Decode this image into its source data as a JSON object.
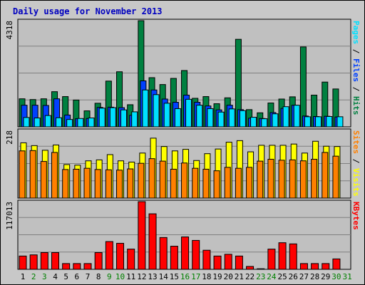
{
  "chart_data": {
    "type": "bar",
    "title": "Daily usage for November 2013",
    "categories": [
      "1",
      "2",
      "3",
      "4",
      "5",
      "6",
      "7",
      "8",
      "9",
      "10",
      "11",
      "12",
      "13",
      "14",
      "15",
      "16",
      "17",
      "18",
      "19",
      "20",
      "21",
      "22",
      "23",
      "24",
      "25",
      "26",
      "27",
      "28",
      "29",
      "30",
      "31"
    ],
    "weekend_days": [
      "2",
      "3",
      "9",
      "10",
      "16",
      "17",
      "23",
      "24",
      "30",
      "31"
    ],
    "panels": {
      "top": {
        "max_label": "4318",
        "ylim": [
          0,
          4318
        ],
        "series": [
          {
            "name": "Hits",
            "color": "#008040",
            "values": [
              1140,
              1110,
              1140,
              1430,
              1230,
              1090,
              650,
              960,
              1860,
              2240,
              900,
              4318,
              2000,
              1720,
              1970,
              2290,
              1160,
              1230,
              940,
              1180,
              3560,
              700,
              570,
              970,
              1130,
              1220,
              3250,
              1290,
              1820,
              1540,
              0
            ]
          },
          {
            "name": "Files",
            "color": "#0040ff",
            "values": [
              880,
              880,
              870,
              1140,
              480,
              330,
              340,
              790,
              800,
              780,
              470,
              1870,
              1500,
              1130,
              1000,
              1290,
              1000,
              850,
              690,
              880,
              700,
              350,
              340,
              580,
              750,
              880,
              440,
              420,
              430,
              400,
              0
            ]
          },
          {
            "name": "Pages",
            "color": "#00e0ff",
            "values": [
              380,
              360,
              460,
              370,
              300,
              340,
              360,
              760,
              780,
              690,
              610,
              1500,
              1310,
              960,
              740,
              1120,
              880,
              740,
              600,
              730,
              660,
              390,
              330,
              530,
              820,
              880,
              410,
              410,
              420,
              410,
              0
            ]
          }
        ],
        "axis_labels": [
          {
            "text": "Pages",
            "color": "#00e0ff"
          },
          {
            "text": " / ",
            "color": "#000000"
          },
          {
            "text": "Files",
            "color": "#0040ff"
          },
          {
            "text": " / ",
            "color": "#000000"
          },
          {
            "text": "Hits",
            "color": "#008040"
          }
        ]
      },
      "middle": {
        "max_label": "218",
        "ylim": [
          0,
          218
        ],
        "series": [
          {
            "name": "Visits",
            "color": "#ffff00",
            "values": [
              178,
              169,
              154,
              171,
              108,
              106,
              120,
              123,
              140,
              120,
              116,
              145,
              193,
              166,
              152,
              157,
              121,
              143,
              158,
              180,
              185,
              149,
              170,
              170,
              170,
              174,
              145,
              183,
              167,
              166,
              0
            ]
          },
          {
            "name": "Sites",
            "color": "#ff8000",
            "values": [
              152,
              153,
              118,
              147,
              92,
              93,
              96,
              92,
              91,
              90,
              94,
              112,
              127,
              119,
              93,
              113,
              96,
              93,
              88,
              99,
              96,
              99,
              119,
              125,
              122,
              123,
              120,
              125,
              147,
              135,
              0
            ]
          }
        ],
        "axis_labels": [
          {
            "text": "Sites",
            "color": "#ff8000"
          },
          {
            "text": " / ",
            "color": "#000000"
          },
          {
            "text": "Visits",
            "color": "#ffff00"
          }
        ]
      },
      "bottom": {
        "max_label": "117013",
        "ylim": [
          0,
          117013
        ],
        "series": [
          {
            "name": "KBytes",
            "color": "#ff0000",
            "values": [
              23000,
              25000,
              29000,
              29000,
              10000,
              10000,
              10000,
              29000,
              48000,
              45000,
              35000,
              117013,
              96000,
              55000,
              40000,
              56000,
              50000,
              33000,
              23000,
              26000,
              23000,
              5000,
              1000,
              35000,
              46000,
              44000,
              10000,
              10000,
              10000,
              18000,
              0
            ]
          }
        ],
        "axis_labels": [
          {
            "text": "KBytes",
            "color": "#ff0000"
          }
        ]
      }
    },
    "colors": {
      "frame_bg": "#c8c8c8",
      "plot_bg": "#c0c0c0",
      "title": "#0000c0",
      "weekday_label": "#000000",
      "weekend_label": "#008000"
    },
    "grid": true
  }
}
